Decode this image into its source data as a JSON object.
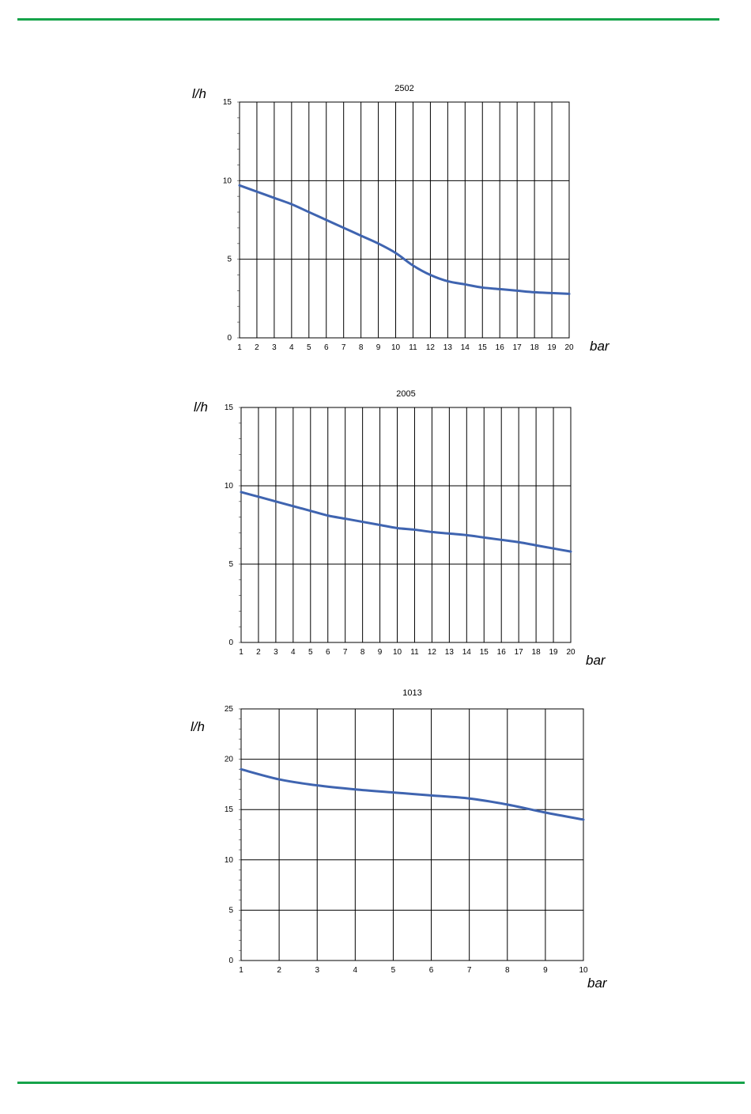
{
  "page": {
    "rule_color": "#16a34a",
    "line_color": "#3f64b0"
  },
  "chart_data": [
    {
      "type": "line",
      "title": "2502",
      "ylabel": "l/h",
      "xlabel": "bar",
      "xlim": [
        1,
        20
      ],
      "ylim": [
        0,
        15
      ],
      "x_ticks": [
        1,
        2,
        3,
        4,
        5,
        6,
        7,
        8,
        9,
        10,
        11,
        12,
        13,
        14,
        15,
        16,
        17,
        18,
        19,
        20
      ],
      "y_ticks": [
        0,
        5,
        10,
        15
      ],
      "grid": true,
      "series": [
        {
          "x": [
            1,
            2,
            3,
            4,
            5,
            6,
            7,
            8,
            9,
            10,
            11,
            12,
            13,
            14,
            15,
            16,
            17,
            18,
            19,
            20
          ],
          "values": [
            9.7,
            9.3,
            8.9,
            8.5,
            8.0,
            7.5,
            7.0,
            6.5,
            6.0,
            5.4,
            4.6,
            4.0,
            3.6,
            3.4,
            3.2,
            3.1,
            3.0,
            2.9,
            2.85,
            2.8
          ]
        }
      ]
    },
    {
      "type": "line",
      "title": "2005",
      "ylabel": "l/h",
      "xlabel": "bar",
      "xlim": [
        1,
        20
      ],
      "ylim": [
        0,
        15
      ],
      "x_ticks": [
        1,
        2,
        3,
        4,
        5,
        6,
        7,
        8,
        9,
        10,
        11,
        12,
        13,
        14,
        15,
        16,
        17,
        18,
        19,
        20
      ],
      "y_ticks": [
        0,
        5,
        10,
        15
      ],
      "grid": true,
      "series": [
        {
          "x": [
            1,
            2,
            3,
            4,
            5,
            6,
            7,
            8,
            9,
            10,
            11,
            12,
            13,
            14,
            15,
            16,
            17,
            18,
            19,
            20
          ],
          "values": [
            9.6,
            9.3,
            9.0,
            8.7,
            8.4,
            8.1,
            7.9,
            7.7,
            7.5,
            7.3,
            7.2,
            7.05,
            6.95,
            6.85,
            6.7,
            6.55,
            6.4,
            6.2,
            6.0,
            5.8
          ]
        }
      ]
    },
    {
      "type": "line",
      "title": "1013",
      "ylabel": "l/h",
      "xlabel": "bar",
      "xlim": [
        1,
        10
      ],
      "ylim": [
        0,
        25
      ],
      "x_ticks": [
        1,
        2,
        3,
        4,
        5,
        6,
        7,
        8,
        9,
        10
      ],
      "y_ticks": [
        0,
        5,
        10,
        15,
        20,
        25
      ],
      "grid": true,
      "series": [
        {
          "x": [
            1,
            2,
            3,
            4,
            5,
            6,
            7,
            8,
            9,
            10
          ],
          "values": [
            19.0,
            18.0,
            17.4,
            17.0,
            16.7,
            16.4,
            16.1,
            15.5,
            14.7,
            14.0
          ]
        }
      ]
    }
  ]
}
